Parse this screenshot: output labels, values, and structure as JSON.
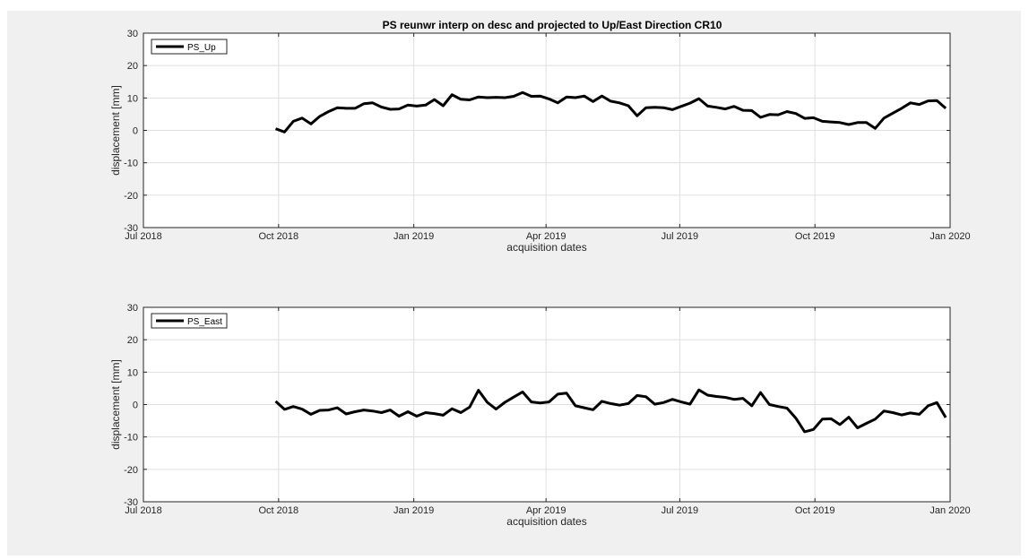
{
  "chart_data": [
    {
      "type": "line",
      "title": "PS reunwr interp on desc and projected to Up/East Direction CR10",
      "xlabel": "acquisition dates",
      "ylabel": "displacement [mm]",
      "ylim": [
        -30,
        30
      ],
      "yticks": [
        -30,
        -20,
        -10,
        0,
        10,
        20,
        30
      ],
      "xlim": [
        "2018-07-01",
        "2020-01-01"
      ],
      "xticks": [
        {
          "date": "2018-07-01",
          "label": "Jul 2018"
        },
        {
          "date": "2018-10-01",
          "label": "Oct 2018"
        },
        {
          "date": "2019-01-01",
          "label": "Jan 2019"
        },
        {
          "date": "2019-04-01",
          "label": "Apr 2019"
        },
        {
          "date": "2019-07-01",
          "label": "Jul 2019"
        },
        {
          "date": "2019-10-01",
          "label": "Oct 2019"
        },
        {
          "date": "2020-01-01",
          "label": "Jan 2020"
        }
      ],
      "grid": true,
      "legend_position": "top-left",
      "series": [
        {
          "name": "PS_Up",
          "color": "#000000",
          "x": [
            "2018-09-29",
            "2018-10-05",
            "2018-10-11",
            "2018-10-17",
            "2018-10-23",
            "2018-10-29",
            "2018-11-04",
            "2018-11-10",
            "2018-11-16",
            "2018-11-22",
            "2018-11-28",
            "2018-12-04",
            "2018-12-10",
            "2018-12-16",
            "2018-12-22",
            "2018-12-28",
            "2019-01-03",
            "2019-01-09",
            "2019-01-15",
            "2019-01-21",
            "2019-01-27",
            "2019-02-02",
            "2019-02-08",
            "2019-02-14",
            "2019-02-20",
            "2019-02-26",
            "2019-03-04",
            "2019-03-10",
            "2019-03-16",
            "2019-03-22",
            "2019-03-28",
            "2019-04-03",
            "2019-04-09",
            "2019-04-15",
            "2019-04-21",
            "2019-04-27",
            "2019-05-03",
            "2019-05-09",
            "2019-05-15",
            "2019-05-21",
            "2019-05-27",
            "2019-06-02",
            "2019-06-08",
            "2019-06-14",
            "2019-06-20",
            "2019-06-26",
            "2019-07-02",
            "2019-07-08",
            "2019-07-14",
            "2019-07-20",
            "2019-07-26",
            "2019-08-01",
            "2019-08-07",
            "2019-08-13",
            "2019-08-19",
            "2019-08-25",
            "2019-08-31",
            "2019-09-06",
            "2019-09-12",
            "2019-09-18",
            "2019-09-24",
            "2019-09-30",
            "2019-10-06",
            "2019-10-12",
            "2019-10-18",
            "2019-10-24",
            "2019-10-30",
            "2019-11-05",
            "2019-11-11",
            "2019-11-17",
            "2019-11-23",
            "2019-11-29",
            "2019-12-05",
            "2019-12-11",
            "2019-12-17",
            "2019-12-23",
            "2019-12-29"
          ],
          "values": [
            0.5,
            -0.5,
            2.8,
            3.8,
            2.0,
            4.3,
            5.8,
            7.0,
            6.8,
            6.8,
            8.2,
            8.5,
            7.2,
            6.5,
            6.6,
            7.8,
            7.5,
            7.8,
            9.5,
            7.6,
            11.0,
            9.6,
            9.4,
            10.3,
            10.1,
            10.2,
            10.1,
            10.5,
            11.7,
            10.5,
            10.6,
            9.7,
            8.5,
            10.3,
            10.1,
            10.6,
            8.9,
            10.6,
            9.0,
            8.5,
            7.6,
            4.5,
            7.0,
            7.1,
            7.0,
            6.4,
            7.4,
            8.4,
            9.8,
            7.5,
            7.1,
            6.6,
            7.4,
            6.2,
            6.1,
            4.0,
            4.9,
            4.8,
            5.8,
            5.2,
            3.7,
            3.9,
            2.8,
            2.6,
            2.4,
            1.8,
            2.4,
            2.4,
            0.6,
            3.8,
            5.3,
            6.8,
            8.5,
            8.0,
            9.1,
            9.2,
            6.8
          ]
        }
      ]
    },
    {
      "type": "line",
      "title": "",
      "xlabel": "acquisition dates",
      "ylabel": "displacement [mm]",
      "ylim": [
        -30,
        30
      ],
      "yticks": [
        -30,
        -20,
        -10,
        0,
        10,
        20,
        30
      ],
      "xlim": [
        "2018-07-01",
        "2020-01-01"
      ],
      "xticks": [
        {
          "date": "2018-07-01",
          "label": "Jul 2018"
        },
        {
          "date": "2018-10-01",
          "label": "Oct 2018"
        },
        {
          "date": "2019-01-01",
          "label": "Jan 2019"
        },
        {
          "date": "2019-04-01",
          "label": "Apr 2019"
        },
        {
          "date": "2019-07-01",
          "label": "Jul 2019"
        },
        {
          "date": "2019-10-01",
          "label": "Oct 2019"
        },
        {
          "date": "2020-01-01",
          "label": "Jan 2020"
        }
      ],
      "grid": true,
      "legend_position": "top-left",
      "series": [
        {
          "name": "PS_East",
          "color": "#000000",
          "x": [
            "2018-09-29",
            "2018-10-05",
            "2018-10-11",
            "2018-10-17",
            "2018-10-23",
            "2018-10-29",
            "2018-11-04",
            "2018-11-10",
            "2018-11-16",
            "2018-11-22",
            "2018-11-28",
            "2018-12-04",
            "2018-12-10",
            "2018-12-16",
            "2018-12-22",
            "2018-12-28",
            "2019-01-03",
            "2019-01-09",
            "2019-01-15",
            "2019-01-21",
            "2019-01-27",
            "2019-02-02",
            "2019-02-08",
            "2019-02-14",
            "2019-02-20",
            "2019-02-26",
            "2019-03-04",
            "2019-03-10",
            "2019-03-16",
            "2019-03-22",
            "2019-03-28",
            "2019-04-03",
            "2019-04-09",
            "2019-04-15",
            "2019-04-21",
            "2019-04-27",
            "2019-05-03",
            "2019-05-09",
            "2019-05-15",
            "2019-05-21",
            "2019-05-27",
            "2019-06-02",
            "2019-06-08",
            "2019-06-14",
            "2019-06-20",
            "2019-06-26",
            "2019-07-02",
            "2019-07-08",
            "2019-07-14",
            "2019-07-20",
            "2019-07-26",
            "2019-08-01",
            "2019-08-07",
            "2019-08-13",
            "2019-08-19",
            "2019-08-25",
            "2019-08-31",
            "2019-09-06",
            "2019-09-12",
            "2019-09-18",
            "2019-09-24",
            "2019-09-30",
            "2019-10-06",
            "2019-10-12",
            "2019-10-18",
            "2019-10-24",
            "2019-10-30",
            "2019-11-05",
            "2019-11-11",
            "2019-11-17",
            "2019-11-23",
            "2019-11-29",
            "2019-12-05",
            "2019-12-11",
            "2019-12-17",
            "2019-12-23",
            "2019-12-29"
          ],
          "values": [
            1.0,
            -1.5,
            -0.6,
            -1.4,
            -3.0,
            -1.8,
            -1.7,
            -1.0,
            -2.9,
            -2.2,
            -1.7,
            -2.0,
            -2.5,
            -1.7,
            -3.6,
            -2.2,
            -3.6,
            -2.5,
            -2.8,
            -3.3,
            -1.3,
            -2.5,
            -0.8,
            4.4,
            0.7,
            -1.4,
            0.7,
            2.3,
            3.9,
            0.8,
            0.5,
            0.8,
            3.2,
            3.5,
            -0.4,
            -1.0,
            -1.6,
            1.0,
            0.3,
            -0.2,
            0.3,
            2.8,
            2.4,
            0.1,
            0.6,
            1.6,
            0.8,
            0.1,
            4.5,
            2.9,
            2.5,
            2.2,
            1.6,
            1.9,
            -0.4,
            3.7,
            0.0,
            -0.6,
            -1.1,
            -4.2,
            -8.4,
            -7.7,
            -4.5,
            -4.4,
            -6.2,
            -3.9,
            -7.2,
            -5.8,
            -4.5,
            -2.0,
            -2.5,
            -3.2,
            -2.6,
            -3.0,
            -0.4,
            0.6,
            -4.0
          ]
        }
      ]
    }
  ]
}
